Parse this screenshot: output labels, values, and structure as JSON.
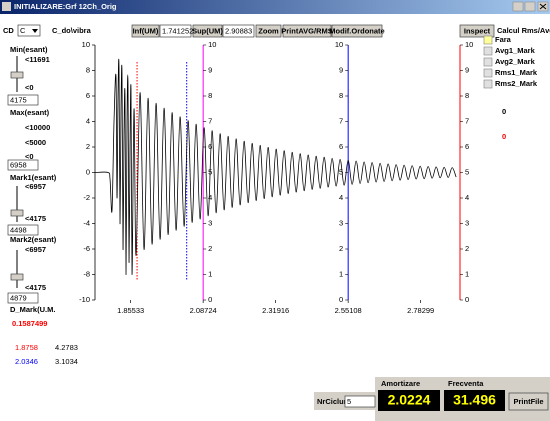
{
  "window": {
    "title": "INITIALIZARE:Grf 12Ch_Orig"
  },
  "toolbar": {
    "drive_label": "CD",
    "drive": "C",
    "path": "C_do\\vibra",
    "inf_label": "Inf(UM)",
    "inf": 1.741252,
    "sup_label": "Sup(UM)",
    "sup": 2.90883,
    "buttons": [
      "Zoom",
      "PrintAVG/RMS",
      "Modif.Ordonate"
    ],
    "inspect": "Inspect",
    "calc_label": "Calcul Rms/Avg"
  },
  "left_panel": {
    "sliders": [
      {
        "label": "Min(esant)",
        "scale": [
          "<11691",
          "<0"
        ],
        "value": 4175
      },
      {
        "label": "Max(esant)",
        "scale": [
          "<10000",
          "<5000",
          "<0"
        ],
        "value": 6958
      },
      {
        "label": "Mark1(esant)",
        "scale": [
          "<6957",
          "<4175"
        ],
        "value": 4498
      },
      {
        "label": "Mark2(esant)",
        "scale": [
          "<6957",
          "<4175"
        ],
        "value": 4879
      }
    ],
    "dmark_label": "D_Mark(U.M.",
    "dmark": 0.1587499,
    "marks": [
      [
        1.8758,
        4.2783
      ],
      [
        2.0346,
        3.1034
      ]
    ],
    "mark_colors": [
      "#ff0000",
      "#0000ff"
    ]
  },
  "chart_data": {
    "type": "line",
    "color": "#000000",
    "x": [
      1.7413,
      1.7829,
      1.7893,
      1.7957,
      1.8021,
      1.8085,
      1.8117,
      1.8149,
      1.8181,
      1.8213,
      1.8245,
      1.8277,
      1.8309,
      1.8341,
      1.8373,
      1.8405,
      1.8437,
      1.8469,
      1.8501,
      1.8533,
      1.8565,
      1.8597,
      1.8661,
      1.8725,
      1.8853,
      1.8981,
      1.9109,
      1.9237,
      1.9365,
      1.9493,
      1.9621,
      1.9749,
      1.9877,
      2.0005,
      2.0133,
      2.0261,
      2.0389,
      2.0517,
      2.0645,
      2.0773,
      2.0901,
      2.1029,
      2.1157,
      2.1285,
      2.1413,
      2.1541,
      2.1669,
      2.1797,
      2.1925,
      2.2053,
      2.2181,
      2.2309,
      2.2437,
      2.2565,
      2.2693,
      2.2821,
      2.2949,
      2.3077,
      2.3205,
      2.3333,
      2.3461,
      2.3589,
      2.3717,
      2.3845,
      2.3973,
      2.4101,
      2.4229,
      2.4357,
      2.4485,
      2.4613,
      2.4741,
      2.4869,
      2.4997,
      2.5125,
      2.5253,
      2.5381,
      2.5509,
      2.5637,
      2.5765,
      2.5893,
      2.6021,
      2.6149,
      2.6277,
      2.6405,
      2.6533,
      2.6661,
      2.6789,
      2.6917,
      2.7045,
      2.7173,
      2.7301,
      2.7429,
      2.7557,
      2.7685,
      2.7813,
      2.7941,
      2.8069,
      2.8197,
      2.8325,
      2.8453,
      2.8581,
      2.8709,
      2.8837,
      2.8965
    ],
    "values": [
      0,
      0,
      -0.5,
      -3,
      4,
      7.5,
      -2,
      6,
      8.3,
      -4,
      5,
      7.8,
      -6,
      3,
      6,
      -8,
      4,
      7,
      -7,
      2,
      6.5,
      -8,
      5,
      -6.5,
      6.27,
      -6.05,
      5.83,
      -5.63,
      5.43,
      -5.24,
      5.05,
      -4.87,
      4.7,
      -4.53,
      4.37,
      -4.22,
      4.07,
      -3.92,
      3.79,
      -3.65,
      3.52,
      -3.4,
      3.28,
      -3.16,
      3.05,
      -2.94,
      2.84,
      -2.74,
      2.64,
      -2.55,
      2.46,
      -2.37,
      2.29,
      -2.2,
      2.13,
      -2.05,
      1.98,
      -1.91,
      1.84,
      -1.78,
      1.71,
      -1.65,
      1.59,
      -1.54,
      1.48,
      -1.43,
      1.38,
      -1.33,
      1.28,
      -1.24,
      1.2,
      -1.15,
      1.11,
      -1.07,
      1.03,
      -1,
      0.96,
      -0.93,
      0.9,
      -0.86,
      0.83,
      -0.8,
      0.78,
      -0.75,
      0.72,
      -0.7,
      0.67,
      -0.65,
      0.62,
      -0.6,
      0.58,
      -0.56,
      0.54,
      -0.52,
      0.5,
      -0.49,
      0.47,
      -0.45,
      0.44,
      -0.42,
      0.41,
      -0.39,
      0.38,
      -0.36
    ],
    "xlim": [
      1.7413,
      2.9088
    ],
    "xticks": [
      1.85533,
      2.08724,
      2.31916,
      2.55108,
      2.78299
    ],
    "ylim": [
      -10,
      10
    ],
    "yticks": [
      10,
      8,
      6,
      4,
      2,
      0,
      -2,
      -4,
      -6,
      -8,
      -10
    ],
    "y2lim": [
      0,
      10
    ],
    "y2ticks": [
      10,
      9,
      8,
      7,
      6,
      5,
      4,
      3,
      2,
      1,
      0
    ],
    "cursor_colors": [
      "#ff00ff",
      "#0000ff",
      "#ff0000"
    ]
  },
  "right_panel": {
    "options": [
      "Fara",
      "Avg1_Mark",
      "Avg2_Mark",
      "Rms1_Mark",
      "Rms2_Mark"
    ],
    "results": [
      0,
      0
    ],
    "result_colors": [
      "#000000",
      "#ff0000"
    ]
  },
  "bottom": {
    "cycles_label": "NrCicluri",
    "cycles": 5,
    "damping_label": "Amortizare",
    "damping": 2.0224,
    "freq_label": "Frecventa",
    "freq": 31.496,
    "print": "PrintFile"
  }
}
